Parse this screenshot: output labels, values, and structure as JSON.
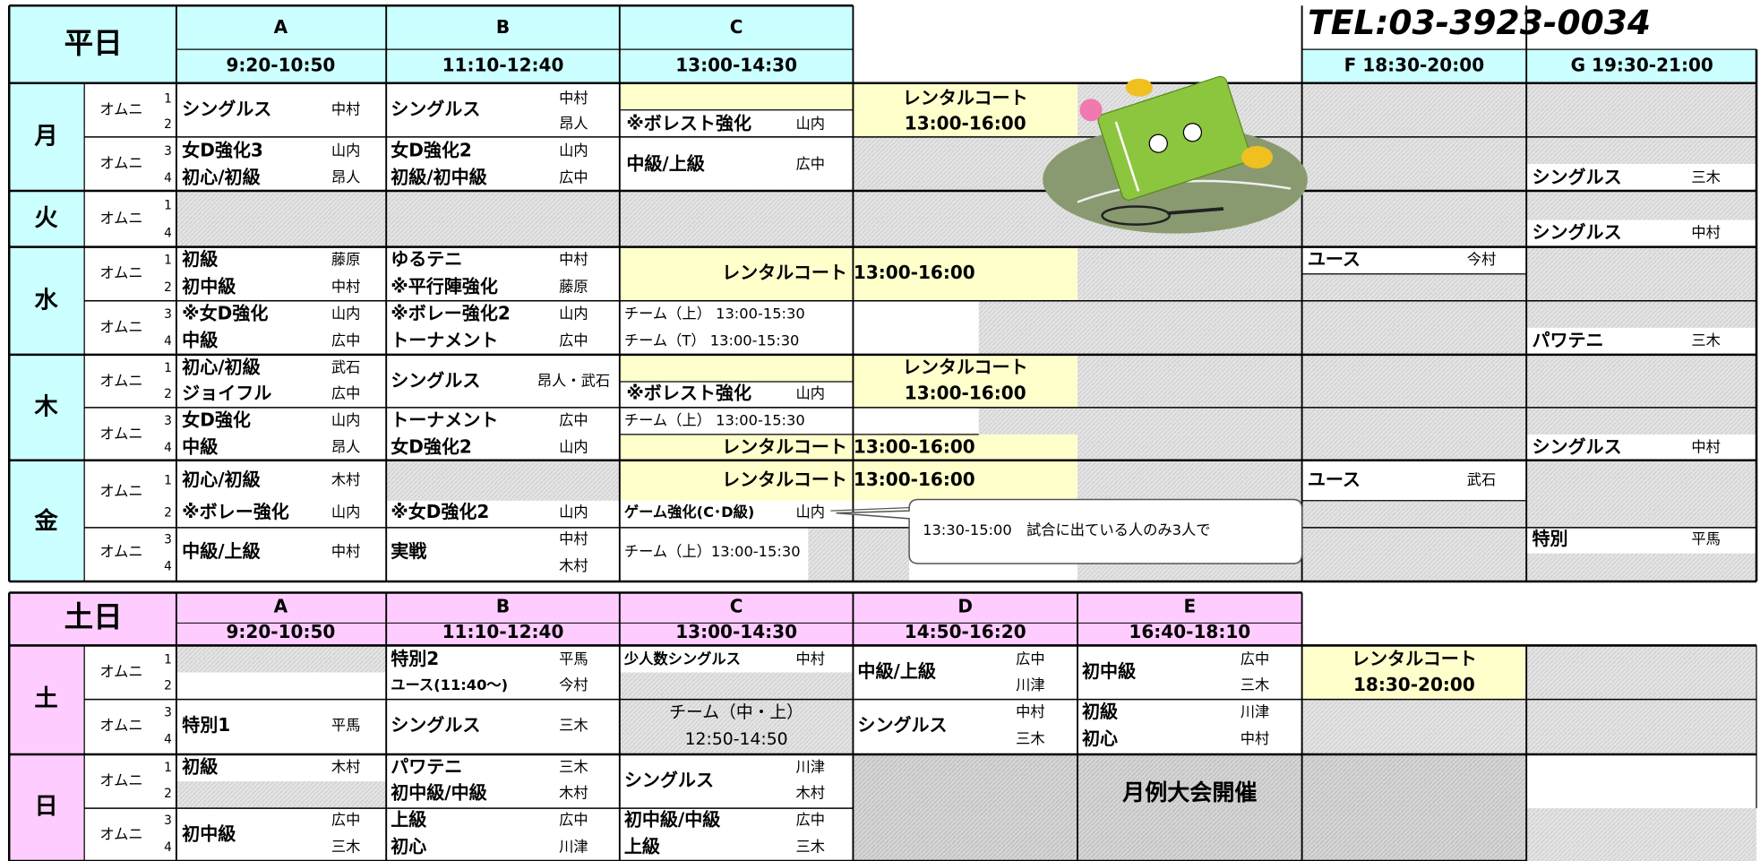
{
  "phone": "TEL:03-3923-0034",
  "callout": "13:30-15:00　試合に出ている人のみ3人で",
  "weekday": {
    "title": "平日",
    "headers": [
      "A",
      "9:20-10:50",
      "B",
      "11:10-12:40",
      "C",
      "13:00-14:30",
      "F 18:30-20:00",
      "G 19:30-21:00"
    ],
    "days": [
      {
        "items": [
          "月",
          "オムニ",
          "オムニ",
          "1",
          "2",
          "3",
          "4",
          "シングルス",
          "中村",
          "シングルス",
          "中村",
          "昂人",
          "レンタルコート",
          "13:00-16:00",
          "※ボレスト強化",
          "山内",
          "女D強化3",
          "山内",
          "初心/初級",
          "昂人",
          "女D強化2",
          "山内",
          "初級/初中級",
          "広中",
          "中級/上級",
          "広中",
          "シングルス",
          "三木"
        ]
      },
      {
        "items": [
          "火",
          "オムニ",
          "1",
          "4",
          "シングルス",
          "中村"
        ]
      },
      {
        "items": [
          "水",
          "オムニ",
          "オムニ",
          "1",
          "2",
          "3",
          "4",
          "初級",
          "藤原",
          "初中級",
          "中村",
          "※女D強化",
          "山内",
          "中級",
          "広中",
          "ゆるテニ",
          "中村",
          "※平行陣強化",
          "藤原",
          "※ボレー強化2",
          "山内",
          "トーナメント",
          "広中",
          "レンタルコート 13:00-16:00",
          "チーム（上） 13:00-15:30",
          "チーム（T） 13:00-15:30",
          "ユース",
          "今村",
          "パワテニ",
          "三木"
        ]
      },
      {
        "items": [
          "木",
          "オムニ",
          "オムニ",
          "1",
          "2",
          "3",
          "4",
          "初心/初級",
          "武石",
          "ジョイフル",
          "広中",
          "女D強化",
          "山内",
          "中級",
          "昂人",
          "シングルス",
          "昂人・武石",
          "トーナメント",
          "広中",
          "女D強化2",
          "山内",
          "レンタルコート",
          "13:00-16:00",
          "※ボレスト強化",
          "山内",
          "チーム（上） 13:00-15:30",
          "レンタルコート 13:00-16:00",
          "シングルス",
          "中村"
        ]
      },
      {
        "items": [
          "金",
          "オムニ",
          "オムニ",
          "1",
          "2",
          "3",
          "4",
          "初心/初級",
          "木村",
          "※ボレー強化",
          "山内",
          "中級/上級",
          "中村",
          "※女D強化2",
          "山内",
          "実戦",
          "中村",
          "木村",
          "レンタルコート 13:00-16:00",
          "ゲーム強化(C･D級)",
          "山内",
          "チーム（上）13:00-15:30",
          "ユース",
          "武石",
          "特別",
          "平馬"
        ]
      }
    ]
  },
  "weekend": {
    "title": "土日",
    "headers": [
      "A",
      "9:20-10:50",
      "B",
      "11:10-12:40",
      "C",
      "13:00-14:30",
      "D",
      "14:50-16:20",
      "E",
      "16:40-18:10"
    ],
    "event": "月例大会開催",
    "days": [
      {
        "items": [
          "土",
          "オムニ",
          "オムニ",
          "1",
          "2",
          "3",
          "4",
          "特別1",
          "平馬",
          "特別2",
          "平馬",
          "ユース(11:40～)",
          "今村",
          "シングルス",
          "三木",
          "少人数シングルス",
          "中村",
          "チーム（中・上）",
          "12:50-14:50",
          "中級/上級",
          "広中",
          "川津",
          "シングルス",
          "中村",
          "三木",
          "初中級",
          "広中",
          "三木",
          "初級",
          "川津",
          "初心",
          "中村",
          "レンタルコート",
          "18:30-20:00"
        ]
      },
      {
        "items": [
          "日",
          "オムニ",
          "オムニ",
          "1",
          "2",
          "3",
          "4",
          "初級",
          "木村",
          "初中級",
          "広中",
          "三木",
          "パワテニ",
          "三木",
          "初中級/中級",
          "木村",
          "上級",
          "広中",
          "初心",
          "川津",
          "シングルス",
          "川津",
          "木村",
          "初中級/中級",
          "広中",
          "上級",
          "三木"
        ]
      }
    ]
  }
}
